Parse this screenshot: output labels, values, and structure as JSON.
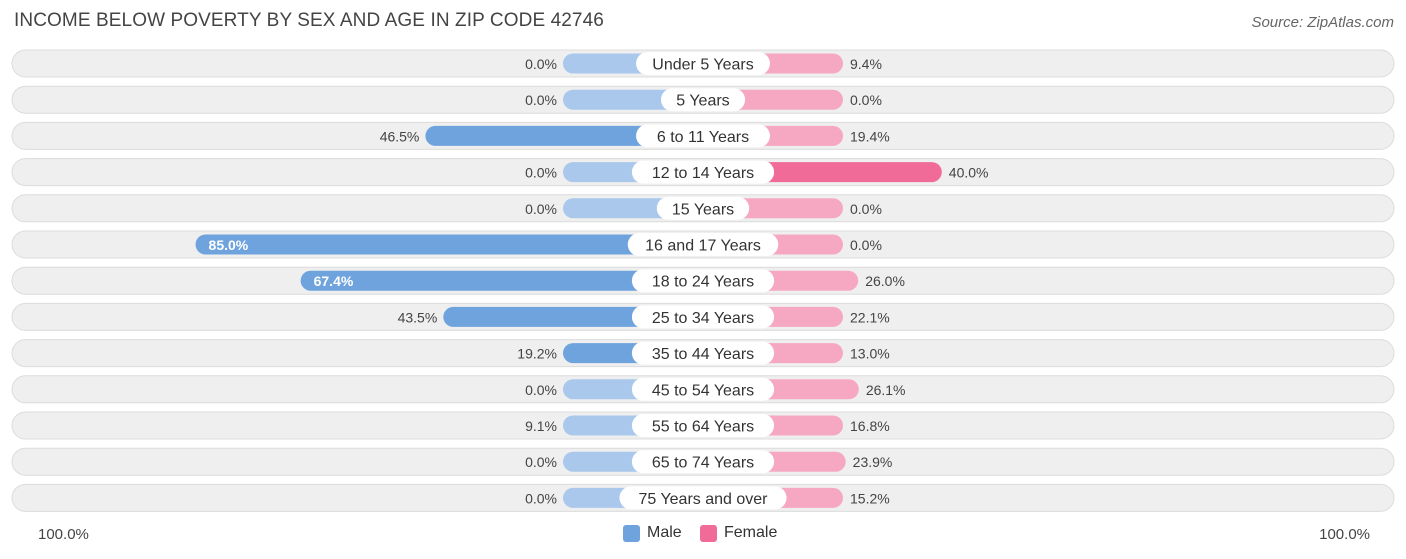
{
  "header": {
    "title": "INCOME BELOW POVERTY BY SEX AND AGE IN ZIP CODE 42746",
    "source": "Source: ZipAtlas.com"
  },
  "legend": {
    "male_label": "Male",
    "female_label": "Female"
  },
  "axis": {
    "left_label": "100.0%",
    "right_label": "100.0%"
  },
  "colors": {
    "male": "#6fa3dd",
    "male_light": "#a9c8ec",
    "female": "#f06b97",
    "female_light": "#f6a8c2",
    "row_bg": "#efefef",
    "row_border": "#dcdcdc"
  },
  "chart_data": {
    "type": "bar",
    "orientation": "diverging-horizontal",
    "title": "INCOME BELOW POVERTY BY SEX AND AGE IN ZIP CODE 42746",
    "categories": [
      "Under 5 Years",
      "5 Years",
      "6 to 11 Years",
      "12 to 14 Years",
      "15 Years",
      "16 and 17 Years",
      "18 to 24 Years",
      "25 to 34 Years",
      "35 to 44 Years",
      "45 to 54 Years",
      "55 to 64 Years",
      "65 to 74 Years",
      "75 Years and over"
    ],
    "series": [
      {
        "name": "Male",
        "values": [
          0.0,
          0.0,
          46.5,
          0.0,
          0.0,
          85.0,
          67.4,
          43.5,
          19.2,
          0.0,
          9.1,
          0.0,
          0.0
        ]
      },
      {
        "name": "Female",
        "values": [
          9.4,
          0.0,
          19.4,
          40.0,
          0.0,
          0.0,
          26.0,
          22.1,
          13.0,
          26.1,
          16.8,
          23.9,
          15.2
        ]
      }
    ],
    "value_labels": {
      "Male": [
        "0.0%",
        "0.0%",
        "46.5%",
        "0.0%",
        "0.0%",
        "85.0%",
        "67.4%",
        "43.5%",
        "19.2%",
        "0.0%",
        "9.1%",
        "0.0%",
        "0.0%"
      ],
      "Female": [
        "9.4%",
        "0.0%",
        "19.4%",
        "40.0%",
        "0.0%",
        "0.0%",
        "26.0%",
        "22.1%",
        "13.0%",
        "26.1%",
        "16.8%",
        "23.9%",
        "15.2%"
      ]
    },
    "xlim": [
      -100,
      100
    ],
    "legend_position": "bottom-center"
  }
}
